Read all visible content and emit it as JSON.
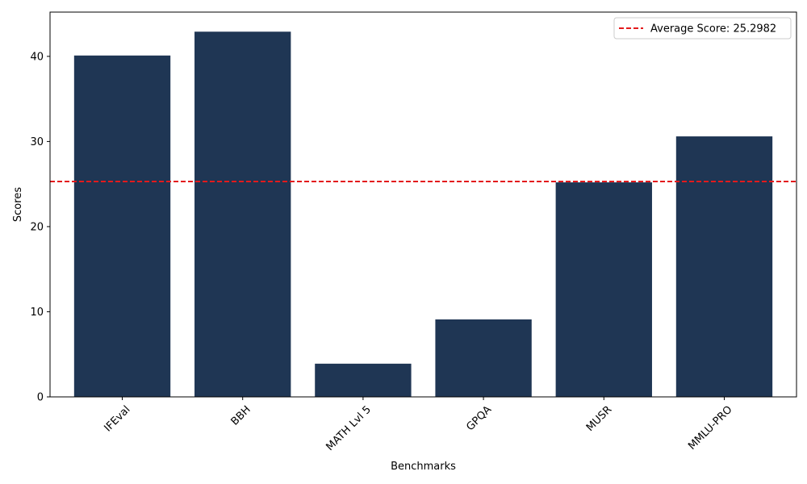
{
  "chart_data": {
    "type": "bar",
    "categories": [
      "IFEval",
      "BBH",
      "MATH Lvl 5",
      "GPQA",
      "MUSR",
      "MMLU-PRO"
    ],
    "values": [
      40.1,
      42.9,
      3.9,
      9.1,
      25.2,
      30.6
    ],
    "xlabel": "Benchmarks",
    "ylabel": "Scores",
    "ylim": [
      0,
      45.2
    ],
    "yticks": [
      0,
      10,
      20,
      30,
      40
    ],
    "reference_line": {
      "value": 25.2982,
      "label": "Average Score: 25.2982",
      "style": "dashed"
    },
    "legend_position": "top-right",
    "grid": false,
    "colors": {
      "bar": "#1f3654",
      "average_line": "#e31a1c"
    }
  }
}
